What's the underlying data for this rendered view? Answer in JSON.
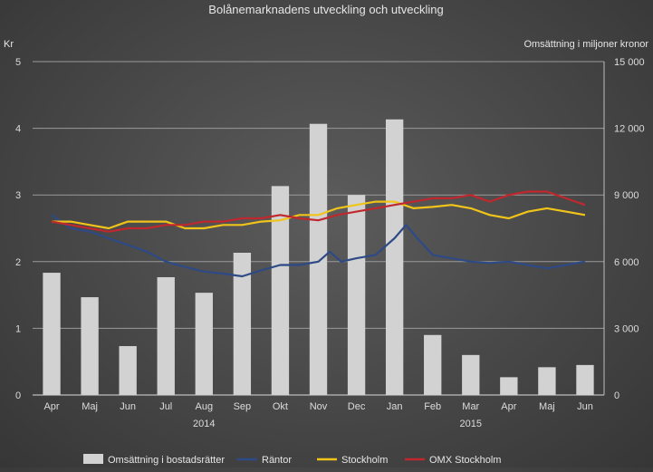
{
  "chart_data": {
    "type": "bar",
    "title": "Bolånemarknadens utveckling och utveckling",
    "left_axis_unit": "Kr",
    "right_axis_label": "Omsättning i miljoner kronor",
    "left_ylim": [
      0,
      5
    ],
    "left_ticks": [
      "0",
      "1",
      "2",
      "3",
      "4",
      "5"
    ],
    "right_ylim": [
      0,
      15000
    ],
    "right_ticks": [
      "0",
      "3 000",
      "6 000",
      "9 000",
      "12 000",
      "15 000"
    ],
    "categories": [
      "Apr",
      "Maj",
      "Jun",
      "Jul",
      "Aug",
      "Sep",
      "Okt",
      "Nov",
      "Dec",
      "Jan",
      "Feb",
      "Mar",
      "Apr",
      "Maj",
      "Jun"
    ],
    "year_labels": [
      {
        "label": "2014",
        "category_index": 4
      },
      {
        "label": "2015",
        "category_index": 11
      }
    ],
    "grid": true,
    "legend_position": "bottom",
    "series": [
      {
        "name": "Omsättning i bostadsrätter",
        "axis": "right",
        "kind": "bar",
        "color": "#d2d2d2",
        "values": [
          5500,
          4400,
          2200,
          5300,
          4600,
          6400,
          9400,
          12200,
          9000,
          12400,
          2700,
          1800,
          800,
          1250,
          1350
        ]
      },
      {
        "name": "Räntor",
        "axis": "left",
        "kind": "line",
        "color": "#2e4a86",
        "x": [
          0,
          0.5,
          1,
          1.5,
          2,
          2.5,
          3,
          3.5,
          4,
          4.5,
          5,
          5.5,
          6,
          6.5,
          7,
          7.3,
          7.6,
          8,
          8.5,
          9,
          9.3,
          9.6,
          10,
          10.5,
          11,
          11.5,
          12,
          12.5,
          13,
          13.5,
          14
        ],
        "values": [
          2.7,
          2.5,
          2.45,
          2.35,
          2.25,
          2.15,
          2.0,
          1.92,
          1.85,
          1.82,
          1.78,
          1.87,
          1.95,
          1.95,
          2.0,
          2.15,
          2.0,
          2.05,
          2.1,
          2.35,
          2.55,
          2.35,
          2.1,
          2.05,
          2.0,
          1.98,
          2.0,
          1.95,
          1.9,
          1.95,
          2.0
        ]
      },
      {
        "name": "Stockholm",
        "axis": "left",
        "kind": "line",
        "color": "#f0c419",
        "x": [
          0,
          0.5,
          1,
          1.5,
          2,
          2.5,
          3,
          3.5,
          4,
          4.5,
          5,
          5.5,
          6,
          6.5,
          7,
          7.5,
          8,
          8.5,
          9,
          9.5,
          10,
          10.5,
          11,
          11.5,
          12,
          12.5,
          13,
          13.5,
          14
        ],
        "values": [
          2.6,
          2.6,
          2.55,
          2.5,
          2.6,
          2.6,
          2.6,
          2.5,
          2.5,
          2.55,
          2.55,
          2.6,
          2.62,
          2.7,
          2.7,
          2.8,
          2.85,
          2.9,
          2.9,
          2.8,
          2.82,
          2.85,
          2.8,
          2.7,
          2.65,
          2.75,
          2.8,
          2.75,
          2.7
        ]
      },
      {
        "name": "OMX Stockholm",
        "axis": "left",
        "kind": "line",
        "color": "#c0282d",
        "x": [
          0,
          0.5,
          1,
          1.5,
          2,
          2.5,
          3,
          3.5,
          4,
          4.5,
          5,
          5.5,
          6,
          6.5,
          7,
          7.5,
          8,
          8.5,
          9,
          9.5,
          10,
          10.5,
          11,
          11.5,
          12,
          12.5,
          13,
          13.5,
          14
        ],
        "values": [
          2.6,
          2.55,
          2.5,
          2.45,
          2.5,
          2.5,
          2.55,
          2.55,
          2.6,
          2.6,
          2.65,
          2.65,
          2.7,
          2.65,
          2.62,
          2.7,
          2.75,
          2.8,
          2.85,
          2.9,
          2.95,
          2.95,
          3.0,
          2.9,
          3.0,
          3.05,
          3.05,
          2.95,
          2.85
        ]
      }
    ]
  }
}
